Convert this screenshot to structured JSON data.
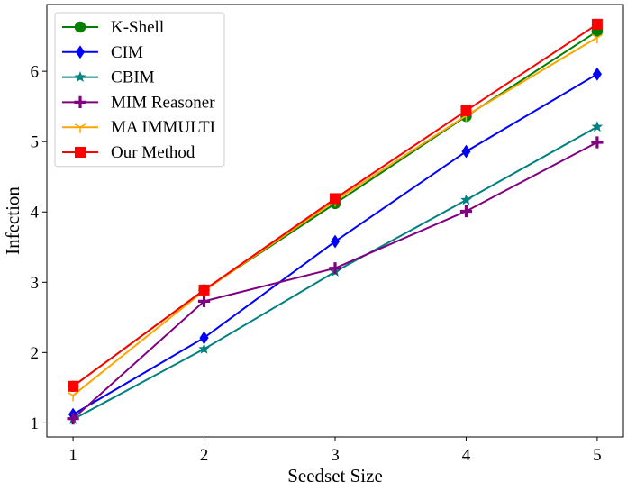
{
  "chart_data": {
    "type": "line",
    "xlabel": "Seedset Size",
    "ylabel": "Infection",
    "x": [
      1,
      2,
      3,
      4,
      5
    ],
    "xlim": [
      0.8,
      5.2
    ],
    "ylim": [
      0.8,
      6.95
    ],
    "xticks": [
      1,
      2,
      3,
      4,
      5
    ],
    "yticks": [
      1,
      2,
      3,
      4,
      5,
      6
    ],
    "grid": false,
    "legend_position": "upper-left",
    "series": [
      {
        "name": "K-Shell",
        "values": [
          1.52,
          2.89,
          4.12,
          5.36,
          6.57
        ],
        "color": "#008000",
        "marker": "circle"
      },
      {
        "name": "CIM",
        "values": [
          1.12,
          2.21,
          3.58,
          4.86,
          5.96
        ],
        "color": "#0000ff",
        "marker": "diamond"
      },
      {
        "name": "CBIM",
        "values": [
          1.05,
          2.05,
          3.15,
          4.17,
          5.21
        ],
        "color": "#008080",
        "marker": "star"
      },
      {
        "name": "MIM Reasoner",
        "values": [
          1.06,
          2.73,
          3.2,
          4.01,
          4.99
        ],
        "color": "#800080",
        "marker": "plus"
      },
      {
        "name": "MA IMMULTI",
        "values": [
          1.39,
          2.88,
          4.16,
          5.37,
          6.48
        ],
        "color": "#ffa500",
        "marker": "tri"
      },
      {
        "name": "Our Method",
        "values": [
          1.52,
          2.89,
          4.19,
          5.44,
          6.67
        ],
        "color": "#ff0000",
        "marker": "square"
      }
    ]
  }
}
